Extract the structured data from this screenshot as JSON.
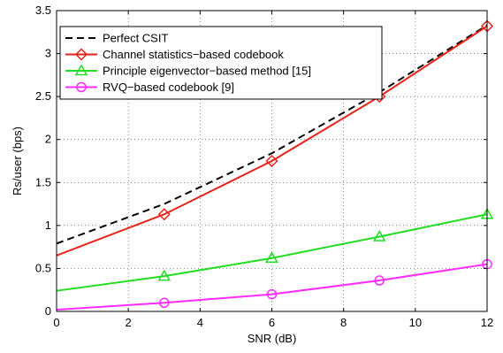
{
  "chart_data": {
    "type": "line",
    "xlabel": "SNR (dB)",
    "ylabel": "Rs/user (bps)",
    "xlim": [
      0,
      12
    ],
    "ylim": [
      0,
      3.5
    ],
    "xticks": [
      0,
      2,
      4,
      6,
      8,
      10,
      12
    ],
    "yticks": [
      0,
      0.5,
      1,
      1.5,
      2,
      2.5,
      3,
      3.5
    ],
    "grid": true,
    "legend_position": "top-left",
    "series": [
      {
        "name": "Perfect CSIT",
        "color": "#000000",
        "dash": "dashed",
        "marker": "none",
        "x": [
          0,
          3,
          6,
          9,
          12
        ],
        "y": [
          0.79,
          1.25,
          1.84,
          2.55,
          3.33
        ],
        "marker_x": []
      },
      {
        "name": "Channel statistics−based codebook",
        "color": "#e8231a",
        "dash": "solid",
        "marker": "diamond",
        "x": [
          0,
          3,
          6,
          9,
          12
        ],
        "y": [
          0.65,
          1.13,
          1.75,
          2.5,
          3.32
        ],
        "marker_x": [
          3,
          6,
          9,
          12
        ]
      },
      {
        "name": "Principle eigenvector−based method [15]",
        "color": "#22dd22",
        "dash": "solid",
        "marker": "triangle",
        "x": [
          0,
          3,
          6,
          9,
          12
        ],
        "y": [
          0.24,
          0.41,
          0.62,
          0.87,
          1.13
        ],
        "marker_x": [
          3,
          6,
          9,
          12
        ]
      },
      {
        "name": "RVQ−based codebook [9]",
        "color": "#ff2bff",
        "dash": "solid",
        "marker": "circle",
        "x": [
          0,
          3,
          6,
          9,
          12
        ],
        "y": [
          0.02,
          0.1,
          0.2,
          0.36,
          0.55
        ],
        "marker_x": [
          3,
          6,
          9,
          12
        ]
      }
    ]
  }
}
